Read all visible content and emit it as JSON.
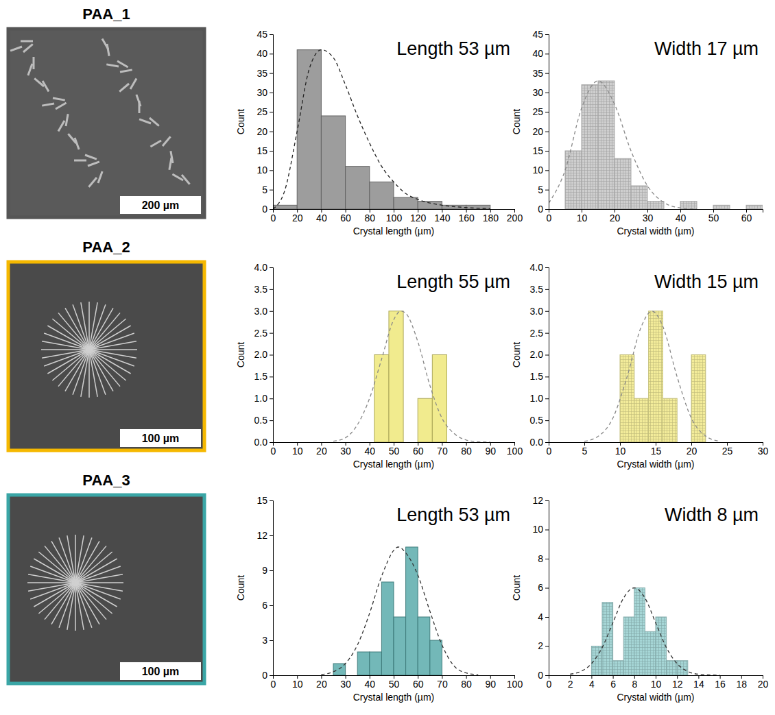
{
  "panels": [
    {
      "label": "PAA_1",
      "scale_bar": "200 µm"
    },
    {
      "label": "PAA_2",
      "scale_bar": "100 µm"
    },
    {
      "label": "PAA_3",
      "scale_bar": "100 µm"
    }
  ],
  "chart_data": [
    {
      "type": "histogram",
      "annotation": "Length 53 µm",
      "xlabel": "Crystal length (µm)",
      "ylabel": "Count",
      "bins": [
        0,
        20,
        40,
        60,
        80,
        100,
        120,
        140,
        160,
        180
      ],
      "values": [
        1,
        41,
        24,
        11,
        7,
        3,
        2,
        1,
        1
      ],
      "color": "#8c8c8c",
      "xlim": [
        0,
        200
      ],
      "xticks": [
        0,
        20,
        40,
        60,
        80,
        100,
        120,
        140,
        160,
        180,
        200
      ],
      "ylim": [
        0,
        45
      ],
      "yticks": [
        0,
        5,
        10,
        15,
        20,
        25,
        30,
        35,
        40,
        45
      ],
      "series": [
        {
          "type": "line",
          "line_style": "dashed",
          "color": "#222222",
          "x": [
            0,
            10,
            20,
            30,
            40,
            50,
            60,
            70,
            80,
            90,
            100,
            110,
            120,
            140,
            160,
            180
          ],
          "values": [
            0,
            5,
            20,
            36,
            41,
            39,
            32,
            24,
            17,
            11,
            7,
            4,
            2.5,
            1,
            0.4,
            0.1
          ]
        }
      ]
    },
    {
      "type": "histogram",
      "annotation": "Width 17 µm",
      "xlabel": "Crystal width (µm)",
      "ylabel": "Count",
      "bins": [
        5,
        10,
        15,
        20,
        25,
        30,
        35,
        40,
        45,
        50,
        55,
        60,
        65
      ],
      "values": [
        15,
        32,
        33,
        13,
        6,
        2,
        0,
        2,
        0,
        1,
        0,
        1
      ],
      "color": "#cfcfcf",
      "xlim": [
        0,
        65
      ],
      "xticks": [
        0,
        10,
        20,
        30,
        40,
        50,
        60
      ],
      "ylim": [
        0,
        45
      ],
      "yticks": [
        0,
        5,
        10,
        15,
        20,
        25,
        30,
        35,
        40,
        45
      ],
      "series": [
        {
          "type": "line",
          "line_style": "dashed",
          "color": "#8a8a8a",
          "x": [
            0,
            5,
            10,
            15,
            20,
            25,
            30,
            35,
            40,
            45
          ],
          "values": [
            1.5,
            10,
            26,
            33,
            27,
            15,
            6,
            1.7,
            0.3,
            0
          ]
        }
      ]
    },
    {
      "type": "histogram",
      "annotation": "Length 55 µm",
      "xlabel": "Crystal length (µm)",
      "ylabel": "Count",
      "bins": [
        42,
        48,
        54,
        60,
        66,
        72
      ],
      "values": [
        2,
        3,
        0,
        1,
        2
      ],
      "color": "#efe77a",
      "xlim": [
        0,
        100
      ],
      "xticks": [
        0,
        10,
        20,
        30,
        40,
        50,
        60,
        70,
        80,
        90,
        100
      ],
      "ylim": [
        0,
        4
      ],
      "yticks": [
        {
          "value": 0,
          "label": "0.0"
        },
        {
          "value": 0.5,
          "label": "0.5"
        },
        {
          "value": 1,
          "label": "1.0"
        },
        {
          "value": 1.5,
          "label": "1.5"
        },
        {
          "value": 2,
          "label": "2.0"
        },
        {
          "value": 2.5,
          "label": "2.5"
        },
        {
          "value": 3,
          "label": "3.0"
        },
        {
          "value": 3.5,
          "label": "3.5"
        },
        {
          "value": 4,
          "label": "4.0"
        }
      ],
      "series": [
        {
          "type": "line",
          "line_style": "dashed",
          "color": "#888888",
          "x": [
            25,
            30,
            35,
            40,
            45,
            50,
            53,
            55,
            60,
            65,
            70,
            75,
            80,
            85,
            90
          ],
          "values": [
            0.02,
            0.1,
            0.4,
            1,
            1.9,
            2.8,
            3,
            2.95,
            2.3,
            1.3,
            0.55,
            0.2,
            0.05,
            0.01,
            0
          ]
        }
      ]
    },
    {
      "type": "histogram",
      "annotation": "Width 15 µm",
      "xlabel": "Crystal width (µm)",
      "ylabel": "Count",
      "bins": [
        10,
        12,
        14,
        16,
        18,
        20,
        22
      ],
      "values": [
        2,
        1,
        3,
        1,
        0,
        2
      ],
      "color": "#f3ec9a",
      "xlim": [
        0,
        30
      ],
      "xticks": [
        0,
        5,
        10,
        15,
        20,
        25,
        30
      ],
      "ylim": [
        0,
        4
      ],
      "yticks": [
        {
          "value": 0,
          "label": "0.0"
        },
        {
          "value": 0.5,
          "label": "0.5"
        },
        {
          "value": 1,
          "label": "1.0"
        },
        {
          "value": 1.5,
          "label": "1.5"
        },
        {
          "value": 2,
          "label": "2.0"
        },
        {
          "value": 2.5,
          "label": "2.5"
        },
        {
          "value": 3,
          "label": "3.0"
        },
        {
          "value": 3.5,
          "label": "3.5"
        },
        {
          "value": 4,
          "label": "4.0"
        }
      ],
      "series": [
        {
          "type": "line",
          "line_style": "dashed",
          "color": "#888888",
          "x": [
            5,
            7,
            9,
            11,
            13,
            14.5,
            16,
            18,
            20,
            22,
            24
          ],
          "values": [
            0.02,
            0.14,
            0.55,
            1.5,
            2.65,
            3,
            2.65,
            1.5,
            0.55,
            0.14,
            0.02
          ]
        }
      ]
    },
    {
      "type": "histogram",
      "annotation": "Length 53 µm",
      "xlabel": "Crystal length (µm)",
      "ylabel": "Count",
      "bins": [
        25,
        30,
        35,
        40,
        45,
        50,
        55,
        60,
        65,
        70
      ],
      "values": [
        1,
        0,
        2,
        2,
        8,
        5,
        11,
        5,
        3
      ],
      "color": "#5aabab",
      "xlim": [
        0,
        100
      ],
      "xticks": [
        0,
        10,
        20,
        30,
        40,
        50,
        60,
        70,
        80,
        90,
        100
      ],
      "ylim": [
        0,
        15
      ],
      "yticks": [
        0,
        3,
        6,
        9,
        12,
        15
      ],
      "series": [
        {
          "type": "line",
          "line_style": "dashed",
          "color": "#333333",
          "x": [
            20,
            25,
            30,
            35,
            40,
            45,
            52,
            55,
            60,
            65,
            70,
            75,
            80,
            85
          ],
          "values": [
            0.06,
            0.3,
            1,
            2.6,
            5.3,
            8.5,
            11,
            10.5,
            8.6,
            5.5,
            2.6,
            0.8,
            0.2,
            0.04
          ]
        }
      ]
    },
    {
      "type": "histogram",
      "annotation": "Width 8 µm",
      "xlabel": "Crystal width (µm)",
      "ylabel": "Count",
      "bins": [
        4,
        5,
        6,
        7,
        8,
        9,
        10,
        11,
        12,
        13
      ],
      "values": [
        2,
        5,
        1,
        4,
        6,
        3,
        4,
        1,
        1
      ],
      "color": "#a6d6d6",
      "xlim": [
        0,
        20
      ],
      "xticks": [
        0,
        2,
        4,
        6,
        8,
        10,
        12,
        14,
        16,
        18,
        20
      ],
      "ylim": [
        0,
        12
      ],
      "yticks": [
        0,
        2,
        4,
        6,
        8,
        10,
        12
      ],
      "series": [
        {
          "type": "line",
          "line_style": "dashed",
          "color": "#333333",
          "x": [
            2,
            3,
            4,
            5,
            6,
            7,
            8,
            9,
            10,
            11,
            12,
            13,
            14,
            16
          ],
          "values": [
            0.07,
            0.26,
            0.8,
            1.9,
            3.6,
            5.3,
            6,
            5.3,
            3.6,
            1.9,
            0.8,
            0.26,
            0.07,
            0
          ]
        }
      ]
    }
  ]
}
